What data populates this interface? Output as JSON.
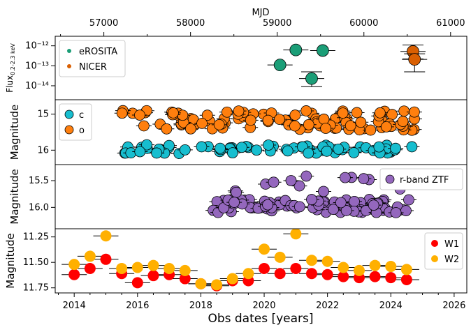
{
  "figure": {
    "top_axis_label": "MJD",
    "bottom_axis_label": "Obs dates [years]",
    "top_ticks": [
      {
        "value": 57000,
        "label": "57000"
      },
      {
        "value": 58000,
        "label": "58000"
      },
      {
        "value": 59000,
        "label": "59000"
      },
      {
        "value": 60000,
        "label": "60000"
      },
      {
        "value": 61000,
        "label": "61000"
      }
    ],
    "bottom_ticks": [
      {
        "value": 2014,
        "label": "2014"
      },
      {
        "value": 2016,
        "label": "2016"
      },
      {
        "value": 2018,
        "label": "2018"
      },
      {
        "value": 2020,
        "label": "2020"
      },
      {
        "value": 2022,
        "label": "2022"
      },
      {
        "value": 2024,
        "label": "2024"
      },
      {
        "value": 2026,
        "label": "2026"
      }
    ],
    "xlim_years": [
      2013.4,
      2026.4
    ]
  },
  "chart_data": [
    {
      "type": "scatter",
      "panel": "xray",
      "ylabel": "Flux_{0.2-2.3 keV}",
      "yscale": "log",
      "ylim": [
        2e-15,
        3e-12
      ],
      "y_ticks": [
        {
          "value": 1e-12,
          "label": "10⁻¹²"
        },
        {
          "value": 1e-13,
          "label": "10⁻¹³"
        },
        {
          "value": 1e-14,
          "label": "10⁻¹⁴"
        }
      ],
      "legend": {
        "position": "top-left",
        "entries": [
          "eROSITA",
          "NICER"
        ]
      },
      "series": [
        {
          "name": "eROSITA",
          "color": "#1b9e77",
          "points": [
            {
              "x": 2020.5,
              "y": 1.1e-13,
              "err": 0.2
            },
            {
              "x": 2021.0,
              "y": 6.2e-13,
              "err": 0.2
            },
            {
              "x": 2021.5,
              "y": 2.3e-14,
              "err_lo": 9e-15,
              "err_hi": 5e-14
            },
            {
              "x": 2021.85,
              "y": 5.8e-13,
              "err": 0.2
            }
          ]
        },
        {
          "name": "NICER",
          "color": "#d95f02",
          "points": [
            {
              "x": 2024.7,
              "y": 5.2e-13,
              "err_lo": 2.2e-13,
              "err_hi": 1.1e-12
            },
            {
              "x": 2024.75,
              "y": 2.1e-13,
              "err_lo": 5e-14,
              "err_hi": 4e-13
            }
          ]
        }
      ]
    },
    {
      "type": "scatter",
      "panel": "atlas",
      "ylabel": "Magnitude",
      "ylim": [
        15.5,
        15.8
      ],
      "y_inverted": true,
      "y_ticks": [
        {
          "value": 15,
          "label": "15"
        },
        {
          "value": 16,
          "label": "16"
        }
      ],
      "legend": {
        "position": "top-left",
        "entries": [
          "c",
          "o"
        ]
      },
      "series": [
        {
          "name": "c",
          "color": "#17becf",
          "band": [
            15.85,
            16.1
          ],
          "x_range": [
            2015.6,
            2024.7
          ],
          "n": 70
        },
        {
          "name": "o",
          "color": "#ff7f0e",
          "band": [
            14.9,
            15.45
          ],
          "x_range": [
            2015.5,
            2024.8
          ],
          "n": 100
        }
      ]
    },
    {
      "type": "scatter",
      "panel": "ztf",
      "ylabel": "Magnitude",
      "ylim": [
        15.2,
        16.4
      ],
      "y_inverted": true,
      "y_ticks": [
        {
          "value": 15.5,
          "label": "15.5"
        },
        {
          "value": 16.0,
          "label": "16.0"
        }
      ],
      "legend": {
        "position": "top-right",
        "entries": [
          "r-band ZTF"
        ]
      },
      "series": [
        {
          "name": "r-band ZTF",
          "color": "#9467bd",
          "band": [
            15.85,
            16.1
          ],
          "x_range": [
            2018.3,
            2024.6
          ],
          "n": 120
        }
      ]
    },
    {
      "type": "scatter",
      "panel": "wise",
      "ylabel": "Magnitude",
      "ylim": [
        11.17,
        11.8
      ],
      "y_inverted": true,
      "y_ticks": [
        {
          "value": 11.25,
          "label": "11.25"
        },
        {
          "value": 11.5,
          "label": "11.50"
        },
        {
          "value": 11.75,
          "label": "11.75"
        }
      ],
      "legend": {
        "position": "top-right",
        "entries": [
          "W1",
          "W2"
        ]
      },
      "series": [
        {
          "name": "W1",
          "color": "#ff0000",
          "x": [
            2014.0,
            2014.5,
            2015.0,
            2015.5,
            2016.0,
            2016.5,
            2017.0,
            2017.5,
            2018.0,
            2018.5,
            2019.0,
            2019.5,
            2020.0,
            2020.5,
            2021.0,
            2021.5,
            2022.0,
            2022.5,
            2023.0,
            2023.5,
            2024.0,
            2024.5
          ],
          "y": [
            11.62,
            11.56,
            11.47,
            11.61,
            11.7,
            11.63,
            11.62,
            11.66,
            11.71,
            11.73,
            11.68,
            11.68,
            11.56,
            11.61,
            11.56,
            11.61,
            11.62,
            11.64,
            11.65,
            11.64,
            11.65,
            11.67
          ]
        },
        {
          "name": "W2",
          "color": "#ffb000",
          "x": [
            2014.0,
            2014.5,
            2015.0,
            2015.5,
            2016.0,
            2016.5,
            2017.0,
            2017.5,
            2018.0,
            2018.5,
            2019.0,
            2019.5,
            2020.0,
            2020.5,
            2021.0,
            2021.5,
            2022.0,
            2022.5,
            2023.0,
            2023.5,
            2024.0,
            2024.5
          ],
          "y": [
            11.52,
            11.44,
            11.24,
            11.56,
            11.55,
            11.53,
            11.56,
            11.58,
            11.71,
            11.72,
            11.66,
            11.61,
            11.37,
            11.45,
            11.22,
            11.48,
            11.49,
            11.55,
            11.58,
            11.53,
            11.54,
            11.57
          ]
        }
      ]
    }
  ]
}
